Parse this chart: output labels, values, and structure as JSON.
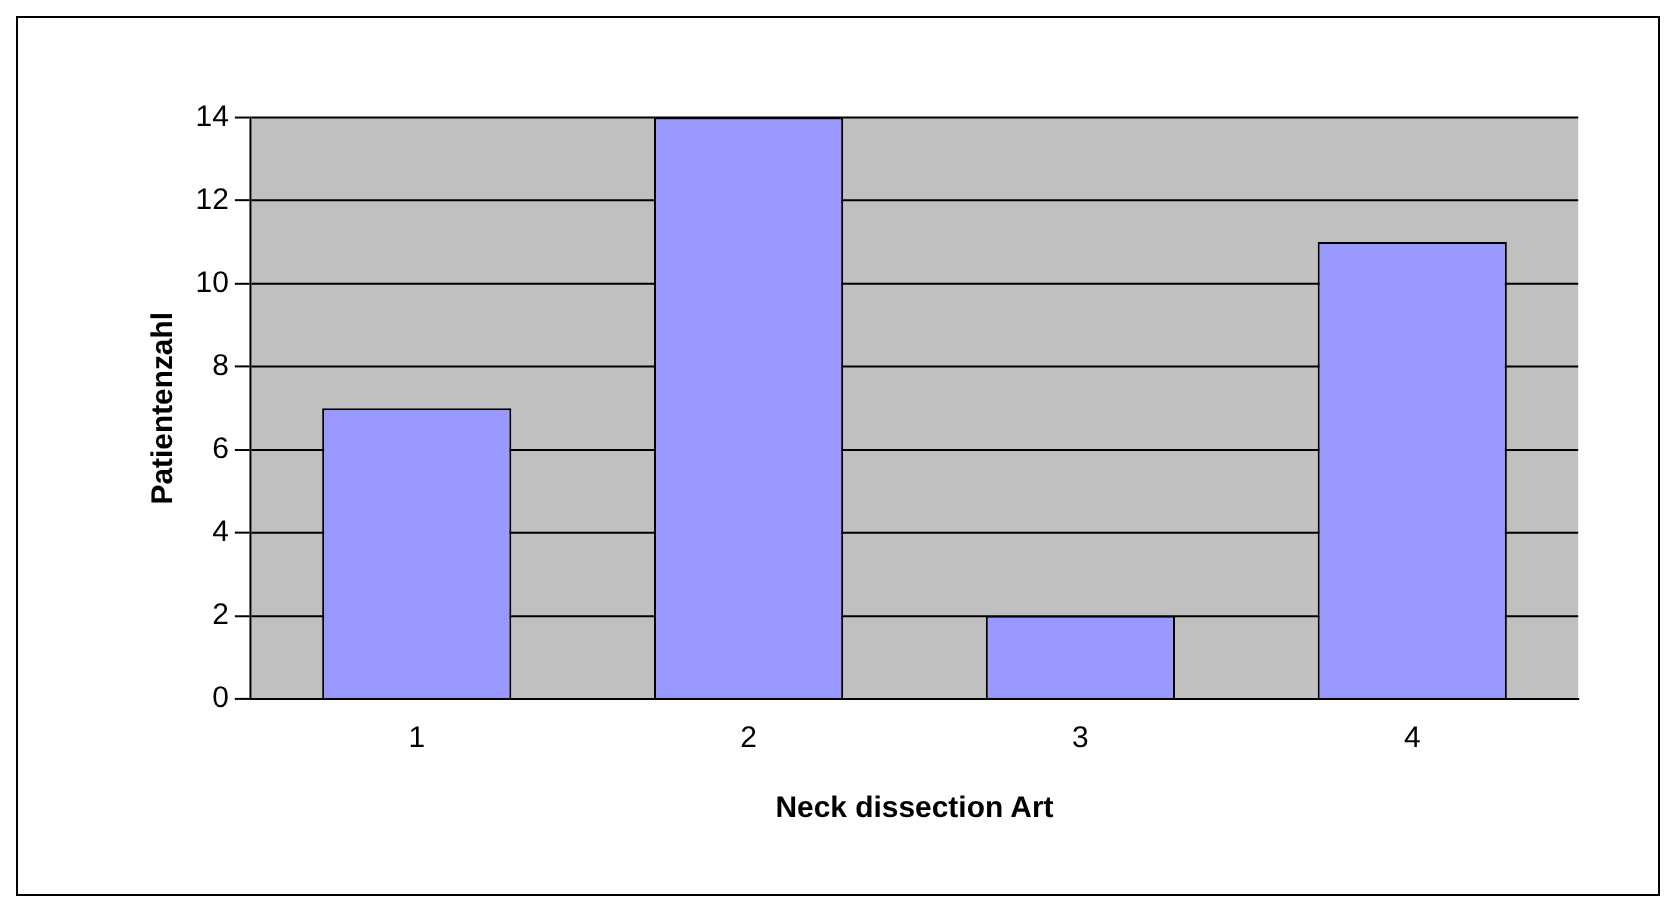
{
  "chart_data": {
    "type": "bar",
    "xlabel": "Neck dissection Art",
    "ylabel": "Patientenzahl",
    "categories": [
      "1",
      "2",
      "3",
      "4"
    ],
    "series": [
      {
        "color": "#9999ff",
        "values": [
          7,
          14,
          2,
          11
        ]
      }
    ],
    "ylim": [
      0,
      14
    ],
    "yticks": [
      0,
      2,
      4,
      6,
      8,
      10,
      12,
      14
    ],
    "grid": "y",
    "legend": false
  }
}
